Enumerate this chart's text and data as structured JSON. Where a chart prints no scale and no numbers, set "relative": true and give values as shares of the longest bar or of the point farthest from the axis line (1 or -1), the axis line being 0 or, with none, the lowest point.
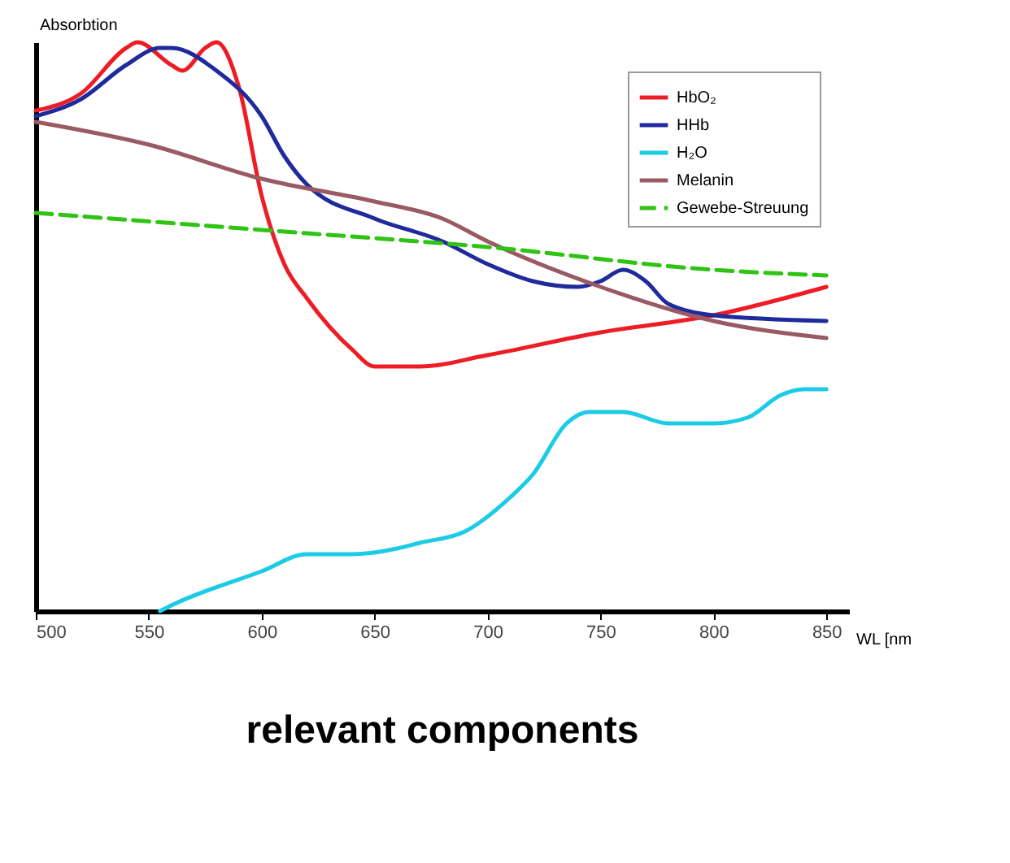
{
  "chart_data": {
    "type": "line",
    "title": "relevant components",
    "xlabel": "WL [nm",
    "ylabel": "Absorbtion",
    "relative": true,
    "xlim": [
      500,
      860
    ],
    "xticks": [
      500,
      550,
      600,
      650,
      700,
      750,
      800,
      850
    ],
    "legend": "top right",
    "marker": "none",
    "series": [
      {
        "name": "HbO₂",
        "color": "#ee1c24",
        "line_style": "solid",
        "x": [
          500,
          520,
          540,
          545,
          560,
          565,
          575,
          580,
          590,
          600,
          610,
          620,
          640,
          650,
          670,
          700,
          750,
          800,
          850
        ],
        "values": [
          0.88,
          0.91,
          0.99,
          1,
          0.96,
          0.95,
          0.99,
          1,
          0.92,
          0.73,
          0.61,
          0.55,
          0.46,
          0.43,
          0.43,
          0.45,
          0.49,
          0.52,
          0.57
        ]
      },
      {
        "name": "HHb",
        "color": "#1f2a9c",
        "line_style": "solid",
        "x": [
          500,
          520,
          540,
          555,
          560,
          580,
          600,
          610,
          620,
          650,
          680,
          700,
          720,
          740,
          750,
          760,
          770,
          780,
          800,
          850
        ],
        "values": [
          0.87,
          0.9,
          0.96,
          0.99,
          0.99,
          0.95,
          0.87,
          0.8,
          0.75,
          0.69,
          0.65,
          0.61,
          0.58,
          0.57,
          0.58,
          0.6,
          0.58,
          0.54,
          0.52,
          0.51
        ]
      },
      {
        "name": "H₂O",
        "color": "#1ccbe6",
        "line_style": "solid",
        "x": [
          555,
          560,
          600,
          620,
          640,
          660,
          670,
          690,
          710,
          720,
          735,
          745,
          760,
          780,
          800,
          815,
          830,
          840,
          850
        ],
        "values": [
          0,
          0.01,
          0.07,
          0.1,
          0.1,
          0.11,
          0.12,
          0.14,
          0.2,
          0.24,
          0.33,
          0.35,
          0.35,
          0.33,
          0.33,
          0.34,
          0.38,
          0.39,
          0.39
        ]
      },
      {
        "name": "Melanin",
        "color": "#9a5a64",
        "line_style": "solid",
        "x": [
          500,
          550,
          600,
          650,
          680,
          700,
          750,
          800,
          850
        ],
        "values": [
          0.86,
          0.82,
          0.76,
          0.72,
          0.69,
          0.65,
          0.57,
          0.51,
          0.48
        ]
      },
      {
        "name": "Gewebe-Streuung",
        "color": "#2fc414",
        "line_style": "dashed",
        "x": [
          500,
          600,
          700,
          800,
          850
        ],
        "values": [
          0.7,
          0.67,
          0.64,
          0.6,
          0.59
        ]
      }
    ]
  }
}
